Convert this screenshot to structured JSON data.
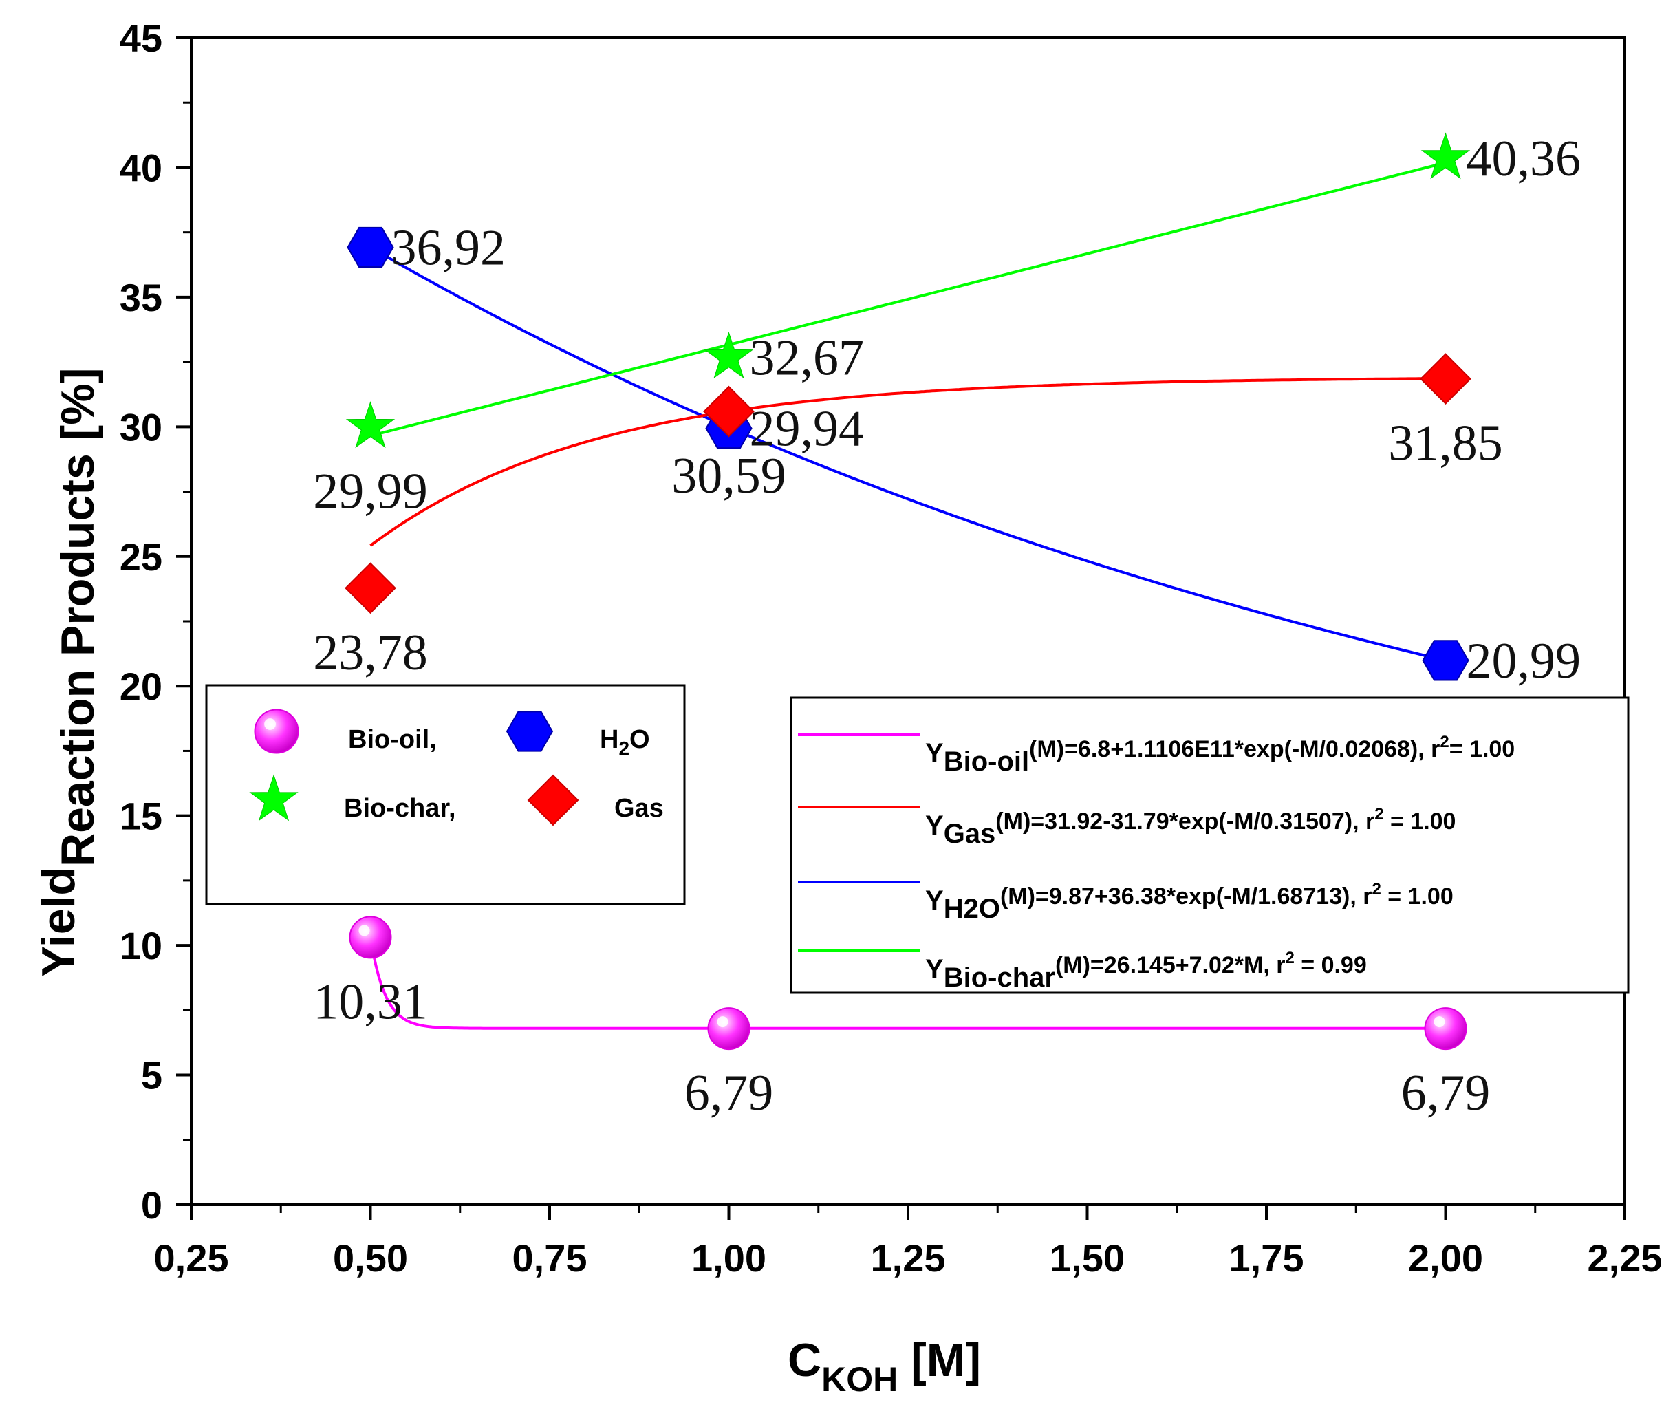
{
  "chart_data": {
    "type": "scatter",
    "title": "",
    "xlabel": "C",
    "xlabel_sub": "KOH",
    "xlabel_unit": "[M]",
    "ylabel_prefix": "Yield",
    "ylabel_main": "Reaction Products [%]",
    "xlim": [
      0.25,
      2.25
    ],
    "ylim": [
      0,
      45
    ],
    "x_ticks": [
      0.25,
      0.5,
      0.75,
      1.0,
      1.25,
      1.5,
      1.75,
      2.0,
      2.25
    ],
    "x_tick_labels": [
      "0,25",
      "0,50",
      "0,75",
      "1,00",
      "1,25",
      "1,50",
      "1,75",
      "2,00",
      "2,25"
    ],
    "y_ticks": [
      0,
      5,
      10,
      15,
      20,
      25,
      30,
      35,
      40,
      45
    ],
    "y_tick_labels": [
      "0",
      "5",
      "10",
      "15",
      "20",
      "25",
      "30",
      "35",
      "40",
      "45"
    ],
    "x": [
      0.5,
      1.0,
      2.0
    ],
    "series": [
      {
        "name": "Bio-oil,",
        "marker": "sphere",
        "color": "#ff00ff",
        "values": [
          10.31,
          6.79,
          6.79
        ],
        "labels": [
          "10,31",
          "6,79",
          "6,79"
        ],
        "label_pos": [
          "below",
          "below",
          "below"
        ],
        "fit": {
          "kind": "exp",
          "a": 6.8,
          "b": 111060000000,
          "t": 0.02068
        }
      },
      {
        "name": "H2O",
        "marker": "hexagon",
        "color": "#0000ff",
        "values": [
          36.92,
          29.94,
          20.99
        ],
        "labels": [
          "36,92",
          "29,94",
          "20,99"
        ],
        "label_pos": [
          "right",
          "right",
          "right"
        ],
        "fit": {
          "kind": "exp",
          "a": 9.87,
          "b": 36.38,
          "t": 1.68713
        }
      },
      {
        "name": "Bio-char,",
        "marker": "star",
        "color": "#00ff00",
        "values": [
          29.99,
          32.67,
          40.36
        ],
        "labels": [
          "29,99",
          "32,67",
          "40,36"
        ],
        "label_pos": [
          "below",
          "right",
          "right"
        ],
        "fit": {
          "kind": "linear",
          "a": 26.145,
          "m": 7.02
        }
      },
      {
        "name": "Gas",
        "marker": "diamond",
        "color": "#ff0000",
        "values": [
          23.78,
          30.59,
          31.85
        ],
        "labels": [
          "23,78",
          "30,59",
          "31,85"
        ],
        "label_pos": [
          "below",
          "below",
          "below"
        ],
        "fit": {
          "kind": "exp",
          "a": 31.92,
          "b": -31.79,
          "t": 0.31507
        }
      }
    ],
    "legend_markers": {
      "row1": [
        {
          "name": "Bio-oil,",
          "marker": "sphere"
        },
        {
          "name": "H",
          "sub": "2",
          "tail": "O",
          "marker": "hexagon"
        }
      ],
      "row2": [
        {
          "name": "Bio-char,",
          "marker": "star"
        },
        {
          "name": "Gas",
          "marker": "diamond"
        }
      ]
    },
    "legend_equations": [
      {
        "color": "#ff00ff",
        "y": "Y",
        "sub": "Bio-oil",
        "rest": "(M)=6.8+1.1106E11*exp(-M/0.02068), r",
        "sup": "2",
        "end": "= 1.00"
      },
      {
        "color": "#ff0000",
        "y": "Y",
        "sub": "Gas",
        "rest": "(M)=31.92-31.79*exp(-M/0.31507), r",
        "sup": "2",
        "end": " = 1.00"
      },
      {
        "color": "#0000ff",
        "y": "Y",
        "sub": "H2O",
        "rest": "(M)=9.87+36.38*exp(-M/1.68713), r",
        "sup": "2",
        "end": " = 1.00"
      },
      {
        "color": "#00ff00",
        "y": "Y",
        "sub": "Bio-char",
        "rest": "(M)=26.145+7.02*M, r",
        "sup": "2",
        "end": " = 0.99"
      }
    ]
  }
}
